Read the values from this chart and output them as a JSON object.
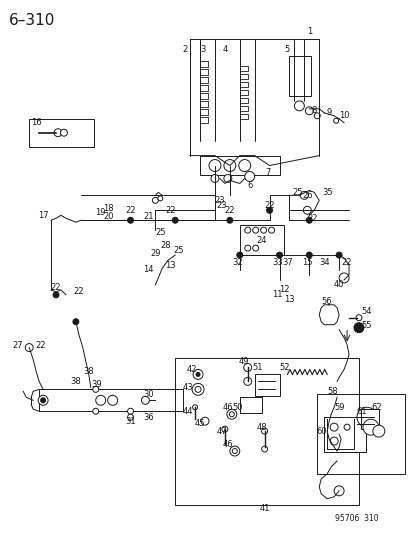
{
  "title": "6–310",
  "watermark": "95706  310",
  "bg_color": "#ffffff",
  "title_fontsize": 11,
  "fig_width": 4.14,
  "fig_height": 5.33,
  "dpi": 100,
  "label_fontsize": 6.0,
  "line_color": "#1a1a1a",
  "line_width": 0.7
}
